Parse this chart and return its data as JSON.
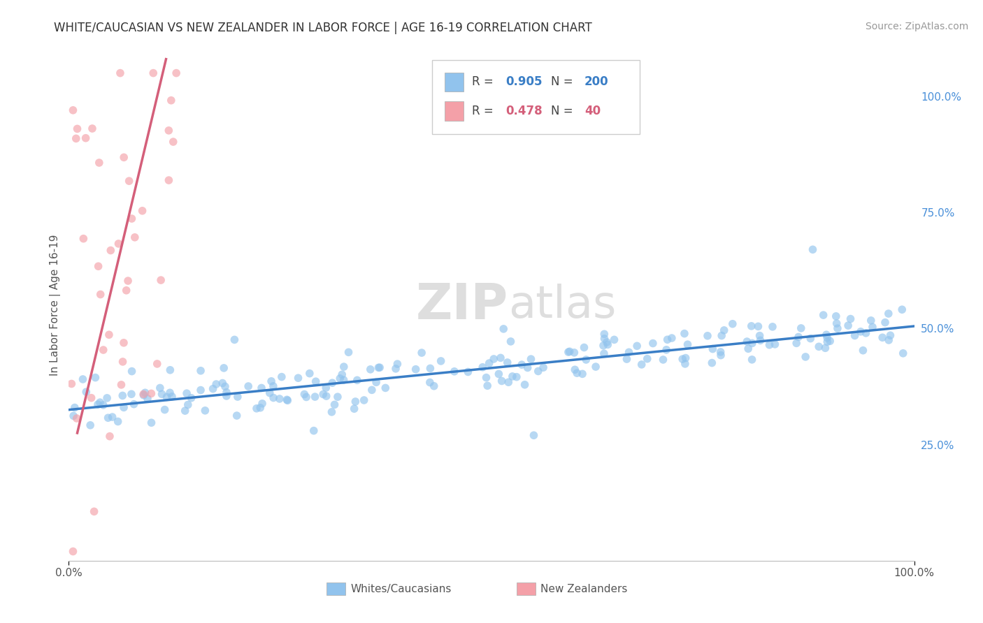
{
  "title": "WHITE/CAUCASIAN VS NEW ZEALANDER IN LABOR FORCE | AGE 16-19 CORRELATION CHART",
  "source": "Source: ZipAtlas.com",
  "ylabel": "In Labor Force | Age 16-19",
  "right_yticks": [
    0.25,
    0.5,
    0.75,
    1.0
  ],
  "right_yticklabels": [
    "25.0%",
    "50.0%",
    "75.0%",
    "100.0%"
  ],
  "bottom_xtick_labels": [
    "0.0%",
    "100.0%"
  ],
  "watermark_zip": "ZIP",
  "watermark_atlas": "atlas",
  "blue_color": "#91C3ED",
  "pink_color": "#F4A0A8",
  "blue_line_color": "#3A7EC6",
  "pink_line_color": "#D45F7A",
  "R_blue": 0.905,
  "N_blue": 200,
  "R_pink": 0.478,
  "N_pink": 40,
  "legend_label_blue": "Whites/Caucasians",
  "legend_label_pink": "New Zealanders",
  "background_color": "#ffffff",
  "grid_color": "#dddddd",
  "title_color": "#333333",
  "source_color": "#999999",
  "right_tick_color": "#4a90d9",
  "bottom_tick_color": "#555555",
  "ylabel_color": "#555555",
  "watermark_color": "#dedede",
  "xlim": [
    0.0,
    1.0
  ],
  "ylim": [
    0.0,
    1.1
  ],
  "title_fontsize": 12,
  "source_fontsize": 10,
  "axis_fontsize": 11,
  "watermark_fontsize": 52,
  "legend_fontsize": 12,
  "seed_blue": 42,
  "seed_pink": 7,
  "blue_line_y0": 0.325,
  "blue_line_y1": 0.505,
  "pink_line_x0": 0.01,
  "pink_line_y0": 0.275,
  "pink_line_x1": 0.115,
  "pink_line_y1": 1.08
}
